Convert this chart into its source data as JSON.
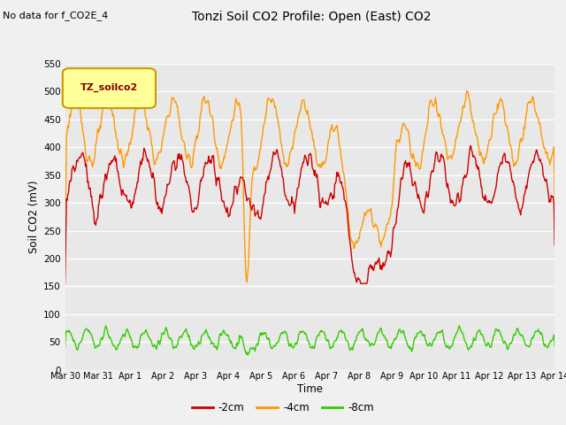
{
  "title": "Tonzi Soil CO2 Profile: Open (East) CO2",
  "subtitle": "No data for f_CO2E_4",
  "ylabel": "Soil CO2 (mV)",
  "xlabel": "Time",
  "legend_label": "TZ_soilco2",
  "series_labels": [
    "-2cm",
    "-4cm",
    "-8cm"
  ],
  "series_colors": [
    "#cc0000",
    "#ff9900",
    "#33cc00"
  ],
  "ylim": [
    0,
    550
  ],
  "yticks": [
    0,
    50,
    100,
    150,
    200,
    250,
    300,
    350,
    400,
    450,
    500,
    550
  ],
  "xtick_labels": [
    "Mar 30",
    "Mar 31",
    "Apr 1",
    "Apr 2",
    "Apr 3",
    "Apr 4",
    "Apr 5",
    "Apr 6",
    "Apr 7",
    "Apr 8",
    "Apr 9",
    "Apr 10",
    "Apr 11",
    "Apr 12",
    "Apr 13",
    "Apr 14"
  ],
  "bg_color": "#f0f0f0",
  "plot_bg_color": "#e8e8e8",
  "grid_color": "#ffffff",
  "line_width": 1.0,
  "legend_box_color": "#ffff99",
  "legend_text_color": "#8b0000",
  "legend_box_edge_color": "#cc9900"
}
